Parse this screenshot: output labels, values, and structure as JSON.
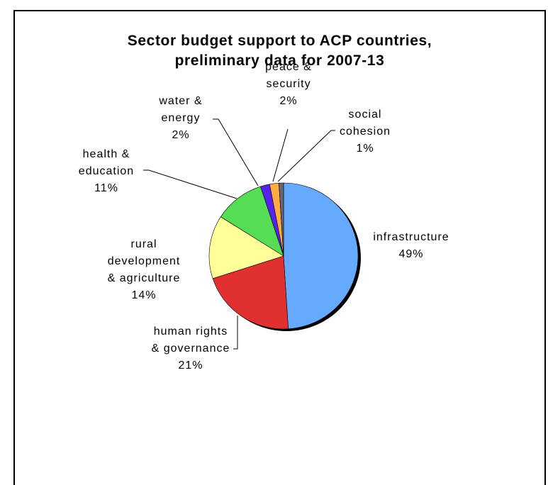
{
  "chart_data": {
    "type": "pie",
    "title_lines": [
      "Sector budget support to ACP countries,",
      "preliminary data for 2007-13"
    ],
    "slices": [
      {
        "label_lines": [
          "infrastructure"
        ],
        "pct_label": "49%",
        "value": 49,
        "color": "#66aaff"
      },
      {
        "label_lines": [
          "human rights",
          "& governance"
        ],
        "pct_label": "21%",
        "value": 21,
        "color": "#e03030"
      },
      {
        "label_lines": [
          "rural",
          "development",
          "& agriculture"
        ],
        "pct_label": "14%",
        "value": 14,
        "color": "#ffff99"
      },
      {
        "label_lines": [
          "health &",
          "education"
        ],
        "pct_label": "11%",
        "value": 11,
        "color": "#55dd55"
      },
      {
        "label_lines": [
          "water &",
          "energy"
        ],
        "pct_label": "2%",
        "value": 2,
        "color": "#5522ee"
      },
      {
        "label_lines": [
          "peace &",
          "security"
        ],
        "pct_label": "2%",
        "value": 2,
        "color": "#ffaa44"
      },
      {
        "label_lines": [
          "social",
          "cohesion"
        ],
        "pct_label": "1%",
        "value": 1,
        "color": "#666677"
      }
    ]
  }
}
